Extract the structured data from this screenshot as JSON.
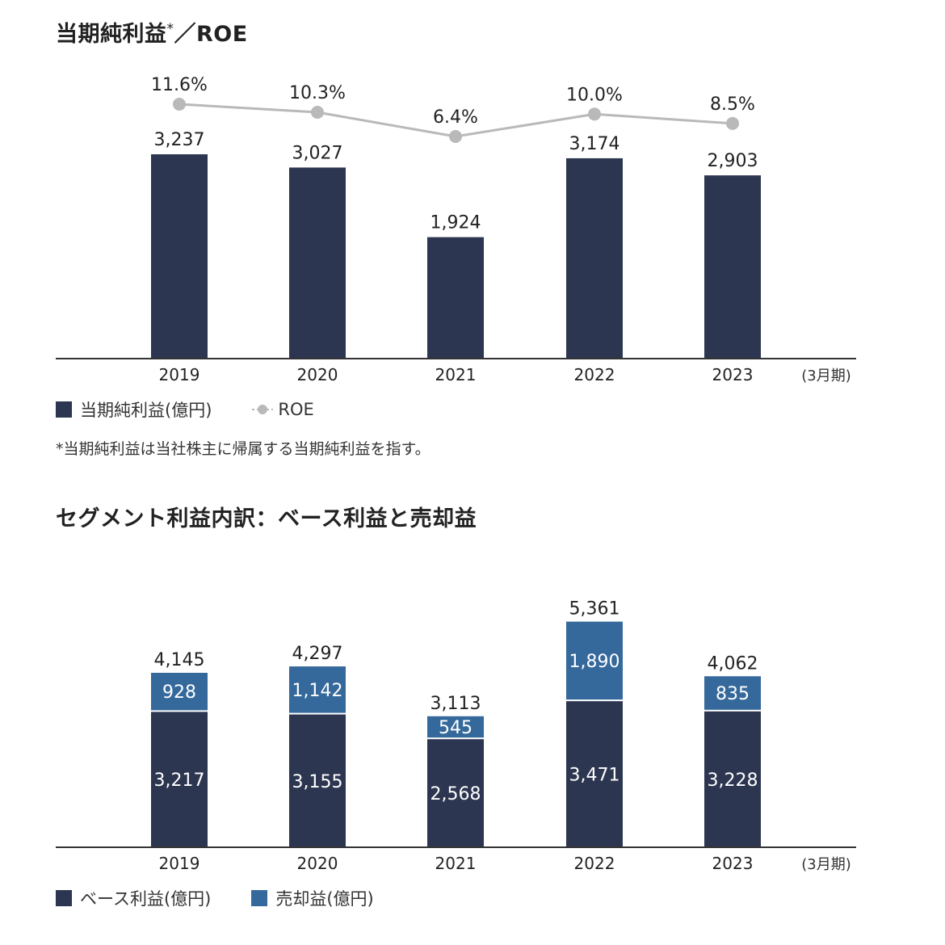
{
  "colors": {
    "net_income": "#2d3651",
    "roe": "#b9b9b9",
    "base_profit": "#2d3651",
    "sale_gain": "#35699b",
    "axis": "#333333"
  },
  "chart_data": [
    {
      "type": "bar",
      "title": "当期純利益",
      "title_mark": "*",
      "title_suffix": "／ROE",
      "categories": [
        "2019",
        "2020",
        "2021",
        "2022",
        "2023"
      ],
      "x_unit_label": "(3月期)",
      "series": [
        {
          "name": "当期純利益(億円)",
          "type": "bar",
          "values": [
            3237,
            3027,
            1924,
            3174,
            2903
          ],
          "labels": [
            "3,237",
            "3,027",
            "1,924",
            "3,174",
            "2,903"
          ]
        },
        {
          "name": "ROE",
          "type": "line",
          "values": [
            11.6,
            10.3,
            6.4,
            10.0,
            8.5
          ],
          "labels": [
            "11.6%",
            "10.3%",
            "6.4%",
            "10.0%",
            "8.5%"
          ]
        }
      ],
      "legend_placement": "bottom-left",
      "grid": false,
      "footnote": "*当期純利益は当社株主に帰属する当期純利益を指す。"
    },
    {
      "type": "bar",
      "stacked": true,
      "title": "セグメント利益内訳：ベース利益と売却益",
      "categories": [
        "2019",
        "2020",
        "2021",
        "2022",
        "2023"
      ],
      "x_unit_label": "(3月期)",
      "series": [
        {
          "name": "ベース利益(億円)",
          "values": [
            3217,
            3155,
            2568,
            3471,
            3228
          ],
          "labels": [
            "3,217",
            "3,155",
            "2,568",
            "3,471",
            "3,228"
          ]
        },
        {
          "name": "売却益(億円)",
          "values": [
            928,
            1142,
            545,
            1890,
            835
          ],
          "labels": [
            "928",
            "1,142",
            "545",
            "1,890",
            "835"
          ]
        }
      ],
      "totals": [
        4145,
        4297,
        3113,
        5361,
        4062
      ],
      "total_labels": [
        "4,145",
        "4,297",
        "3,113",
        "5,361",
        "4,062"
      ],
      "legend_placement": "bottom-left",
      "grid": false
    }
  ]
}
